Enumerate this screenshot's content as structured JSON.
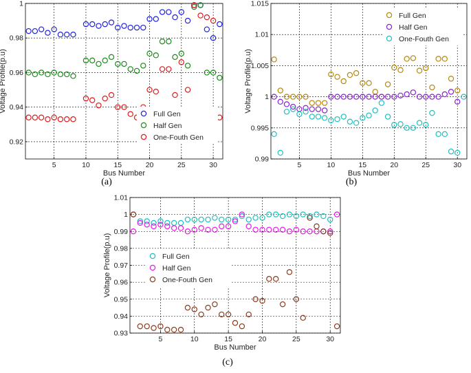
{
  "chart_data": [
    {
      "type": "scatter",
      "caption": "(a)",
      "xlabel": "Bus Number",
      "ylabel": "Voltage Profile(p.u)",
      "xlim": [
        0.5,
        31.5
      ],
      "ylim": [
        0.91,
        1.0
      ],
      "xticks": [
        5,
        10,
        15,
        20,
        25,
        30
      ],
      "yticks": [
        0.92,
        0.94,
        0.96,
        0.98,
        1.0
      ],
      "ytick_labels": [
        "0.92",
        "0.94",
        "0.96",
        "0.98",
        "1"
      ],
      "legend": "bottom-right",
      "series": [
        {
          "name": "Full Gen",
          "color": "#1f1fe6",
          "x": [
            1,
            2,
            3,
            4,
            5,
            6,
            7,
            8,
            10,
            11,
            12,
            13,
            14,
            15,
            16,
            17,
            18,
            19,
            20,
            21,
            22,
            23,
            24,
            25,
            26,
            27,
            28,
            29,
            30,
            31
          ],
          "y": [
            0.984,
            0.984,
            0.985,
            0.983,
            0.985,
            0.982,
            0.982,
            0.982,
            0.988,
            0.988,
            0.987,
            0.988,
            0.989,
            0.986,
            0.987,
            0.986,
            0.986,
            0.986,
            0.991,
            0.991,
            0.995,
            0.995,
            0.992,
            0.995,
            0.99,
            0.999,
            0.999,
            0.985,
            0.98,
            0.988
          ]
        },
        {
          "name": "Half Gen",
          "color": "#1a8a1a",
          "x": [
            1,
            2,
            3,
            4,
            5,
            6,
            7,
            8,
            10,
            11,
            12,
            13,
            14,
            15,
            16,
            17,
            18,
            19,
            20,
            21,
            22,
            23,
            24,
            25,
            26,
            27,
            28,
            29,
            30,
            31
          ],
          "y": [
            0.96,
            0.959,
            0.96,
            0.959,
            0.96,
            0.959,
            0.959,
            0.958,
            0.967,
            0.967,
            0.965,
            0.967,
            0.969,
            0.965,
            0.965,
            0.962,
            0.961,
            0.964,
            0.971,
            0.97,
            0.978,
            0.978,
            0.969,
            0.971,
            0.964,
            0.998,
            0.999,
            0.96,
            0.96,
            0.957
          ]
        },
        {
          "name": "One-Fouth Gen",
          "color": "#e01a1a",
          "x": [
            1,
            2,
            3,
            4,
            5,
            6,
            7,
            8,
            10,
            11,
            12,
            13,
            14,
            15,
            16,
            17,
            18,
            19,
            20,
            21,
            22,
            23,
            24,
            25,
            26,
            27,
            28,
            29,
            30,
            31
          ],
          "y": [
            0.934,
            0.934,
            0.934,
            0.933,
            0.934,
            0.933,
            0.933,
            0.933,
            0.945,
            0.944,
            0.941,
            0.945,
            0.947,
            0.94,
            0.94,
            0.936,
            0.934,
            0.94,
            0.95,
            0.949,
            0.962,
            0.962,
            0.947,
            0.966,
            0.95,
            0.999,
            0.993,
            0.992,
            0.99,
            0.934
          ]
        }
      ]
    },
    {
      "type": "scatter",
      "caption": "(b)",
      "xlabel": "Bus Number",
      "ylabel": "Voltage Profile(p.u)",
      "xlim": [
        0.5,
        31.5
      ],
      "ylim": [
        0.99,
        1.015
      ],
      "xticks": [
        5,
        10,
        15,
        20,
        25,
        30
      ],
      "yticks": [
        0.99,
        0.995,
        1.0,
        1.005,
        1.01,
        1.015
      ],
      "ytick_labels": [
        "0.99",
        "0.995",
        "1",
        "1.005",
        "1.01",
        "1.015"
      ],
      "legend": "top-right",
      "series": [
        {
          "name": "Full Gen",
          "color": "#b8860b",
          "x": [
            1,
            2,
            3,
            4,
            5,
            6,
            7,
            8,
            9,
            10,
            11,
            12,
            13,
            14,
            15,
            16,
            17,
            18,
            19,
            20,
            21,
            22,
            23,
            24,
            25,
            26,
            27,
            28,
            29,
            30
          ],
          "y": [
            1.006,
            1.001,
            1.0,
            1.0,
            1.0,
            1.0,
            0.999,
            0.999,
            0.999,
            1.0036,
            1.0032,
            1.0025,
            1.0035,
            1.0038,
            1.0022,
            1.0022,
            1.0008,
            1.0,
            1.002,
            1.0047,
            1.0043,
            1.0061,
            1.0062,
            1.0042,
            1.0046,
            1.0015,
            1.0061,
            1.0061,
            1.0029,
            1.001
          ]
        },
        {
          "name": "Half Gen",
          "color": "#8a1fd6",
          "x": [
            1,
            2,
            3,
            4,
            5,
            6,
            7,
            8,
            9,
            10,
            11,
            12,
            13,
            14,
            15,
            16,
            17,
            18,
            19,
            20,
            21,
            22,
            23,
            24,
            25,
            26,
            27,
            28,
            29,
            30
          ],
          "y": [
            1.0,
            0.9992,
            0.9988,
            0.9984,
            0.998,
            0.9982,
            0.998,
            0.998,
            0.9978,
            1.0,
            1.0,
            1.0,
            1.0,
            1.0,
            1.0,
            1.0,
            1.0,
            1.0,
            1.0,
            1.0,
            1.0002,
            1.0004,
            1.0007,
            1.0,
            1.0,
            1.0,
            1.0,
            1.0004,
            1.0008,
            0.9992
          ]
        },
        {
          "name": "One-Fouth Gen",
          "color": "#1fbfbf",
          "x": [
            1,
            2,
            3,
            4,
            5,
            6,
            7,
            8,
            9,
            10,
            11,
            12,
            13,
            14,
            15,
            16,
            17,
            18,
            19,
            20,
            21,
            22,
            23,
            24,
            25,
            26,
            27,
            28,
            29,
            30,
            31
          ],
          "y": [
            0.994,
            0.991,
            0.9976,
            0.998,
            0.9972,
            0.9976,
            0.9968,
            0.9968,
            0.9966,
            0.9962,
            0.9964,
            0.9968,
            0.996,
            0.9958,
            0.9966,
            0.997,
            0.9978,
            0.999,
            0.9968,
            0.9955,
            0.9956,
            0.995,
            0.995,
            0.9958,
            0.9955,
            0.9974,
            0.994,
            0.994,
            0.9912,
            0.991,
            1.0
          ]
        }
      ]
    },
    {
      "type": "scatter",
      "caption": "(c)",
      "xlabel": "Bus Number",
      "ylabel": "Voltage Profile(p.u)",
      "xlim": [
        0.5,
        31.5
      ],
      "ylim": [
        0.93,
        1.01
      ],
      "xticks": [
        5,
        10,
        15,
        20,
        25,
        30
      ],
      "yticks": [
        0.93,
        0.94,
        0.95,
        0.96,
        0.97,
        0.98,
        0.99,
        1.0,
        1.01
      ],
      "ytick_labels": [
        "0.93",
        "0.94",
        "0.95",
        "0.96",
        "0.97",
        "0.98",
        "0.99",
        "1",
        "1.01"
      ],
      "legend": "middle-left",
      "series": [
        {
          "name": "Full Gen",
          "color": "#1fbfbf",
          "x": [
            1,
            2,
            3,
            4,
            5,
            6,
            7,
            8,
            9,
            10,
            11,
            12,
            13,
            14,
            15,
            16,
            17,
            18,
            19,
            20,
            21,
            22,
            23,
            24,
            25,
            26,
            27,
            28,
            29,
            30
          ],
          "y": [
            1.0,
            0.996,
            0.996,
            0.995,
            0.996,
            0.995,
            0.995,
            0.995,
            0.997,
            0.997,
            0.997,
            0.997,
            0.998,
            0.997,
            0.997,
            0.997,
            0.999,
            0.997,
            0.998,
            0.998,
            1.0,
            1.0,
            0.999,
            1.0,
            0.999,
            1.0,
            0.999,
            1.0,
            0.999,
            0.997
          ]
        },
        {
          "name": "Half Gen",
          "color": "#e619e6",
          "x": [
            1,
            2,
            3,
            4,
            5,
            6,
            7,
            8,
            9,
            10,
            11,
            12,
            13,
            14,
            15,
            16,
            17,
            18,
            19,
            20,
            21,
            22,
            23,
            24,
            25,
            26,
            27,
            28,
            29,
            30,
            31
          ],
          "y": [
            0.99,
            0.995,
            0.994,
            0.993,
            0.994,
            0.993,
            0.992,
            0.992,
            0.99,
            0.991,
            0.992,
            0.991,
            0.991,
            0.993,
            0.993,
            0.996,
            1.0,
            0.993,
            0.991,
            0.991,
            0.991,
            0.991,
            0.991,
            0.99,
            0.991,
            0.99,
            0.99,
            0.99,
            0.99,
            0.99,
            1.0
          ]
        },
        {
          "name": "One-Fouth Gen",
          "color": "#8b3a1a",
          "x": [
            1,
            2,
            3,
            4,
            5,
            6,
            7,
            8,
            9,
            10,
            11,
            12,
            13,
            14,
            15,
            16,
            17,
            18,
            19,
            20,
            21,
            22,
            23,
            24,
            25,
            26,
            27,
            28,
            29,
            30,
            31
          ],
          "y": [
            1.0,
            0.934,
            0.934,
            0.933,
            0.934,
            0.932,
            0.932,
            0.932,
            0.945,
            0.944,
            0.941,
            0.945,
            0.947,
            0.941,
            0.941,
            0.936,
            0.934,
            0.941,
            0.95,
            0.949,
            0.962,
            0.962,
            0.947,
            0.966,
            0.95,
            0.939,
            0.998,
            0.993,
            0.99,
            0.989,
            0.934
          ]
        }
      ]
    }
  ]
}
